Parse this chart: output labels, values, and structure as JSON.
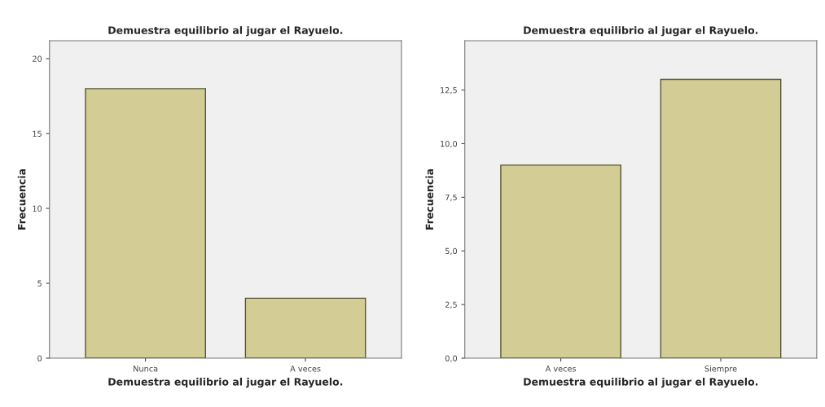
{
  "chart_data": [
    {
      "type": "bar",
      "title": "Demuestra equilibrio al jugar el Rayuelo.",
      "xlabel": "Demuestra equilibrio al jugar el Rayuelo.",
      "ylabel": "Frecuencia",
      "categories": [
        "Nunca",
        "A veces"
      ],
      "values": [
        18,
        4
      ],
      "color": "#d3cd95",
      "ylim": [
        0,
        21.2
      ],
      "yticks": [
        0,
        5,
        10,
        15,
        20
      ],
      "grid": false,
      "legend": false
    },
    {
      "type": "bar",
      "title": "Demuestra equilibrio al jugar el Rayuelo.",
      "xlabel": "Demuestra equilibrio al jugar el Rayuelo.",
      "ylabel": "Frecuencia",
      "categories": [
        "A veces",
        "Siempre"
      ],
      "values": [
        9,
        13
      ],
      "color": "#d3cd95",
      "ylim": [
        0,
        14.8
      ],
      "yticks": [
        {
          "value": 0,
          "label": "0,0"
        },
        {
          "value": 2.5,
          "label": "2,5"
        },
        {
          "value": 5,
          "label": "5,0"
        },
        {
          "value": 7.5,
          "label": "7,5"
        },
        {
          "value": 10,
          "label": "10,0"
        },
        {
          "value": 12.5,
          "label": "12,5"
        }
      ],
      "grid": false,
      "legend": false
    }
  ]
}
